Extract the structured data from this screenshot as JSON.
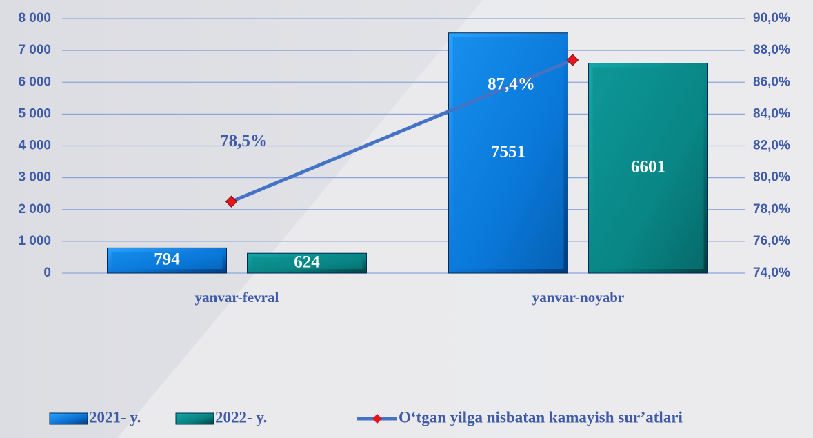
{
  "chart_data": {
    "type": "bar",
    "categories": [
      "yanvar-fevral",
      "yanvar-noyabr"
    ],
    "series": [
      {
        "name": "2021- y.",
        "color": "#0a7fe0",
        "values": [
          794,
          7551
        ]
      },
      {
        "name": "2022- y.",
        "color": "#0b8a8a",
        "values": [
          624,
          6601
        ]
      },
      {
        "name": "O‘tgan yilga nisbatan kamayish sur’atlari",
        "type": "line",
        "axis": "y2",
        "color": "#4472c4",
        "marker_color": "#e8141c",
        "values": [
          78.5,
          87.4
        ],
        "value_labels": [
          "78,5%",
          "87,4%"
        ]
      }
    ],
    "ylim": [
      0,
      8000
    ],
    "yticks": [
      0,
      {
        "value": 1000,
        "label": "1 000"
      },
      {
        "value": 2000,
        "label": "2 000"
      },
      {
        "value": 3000,
        "label": "3 000"
      },
      {
        "value": 4000,
        "label": "4 000"
      },
      {
        "value": 5000,
        "label": "5 000"
      },
      {
        "value": 6000,
        "label": "6 000"
      },
      {
        "value": 7000,
        "label": "7 000"
      },
      {
        "value": 8000,
        "label": "8 000"
      }
    ],
    "y2lim": [
      74,
      90
    ],
    "y2ticks": [
      {
        "value": 74,
        "label": "74,0%"
      },
      {
        "value": 76,
        "label": "76,0%"
      },
      {
        "value": 78,
        "label": "78,0%"
      },
      {
        "value": 80,
        "label": "80,0%"
      },
      {
        "value": 82,
        "label": "82,0%"
      },
      {
        "value": 84,
        "label": "84,0%"
      },
      {
        "value": 86,
        "label": "86,0%"
      },
      {
        "value": 88,
        "label": "88,0%"
      },
      {
        "value": 90,
        "label": "90,0%"
      }
    ],
    "grid": true,
    "legend": "bottom"
  }
}
